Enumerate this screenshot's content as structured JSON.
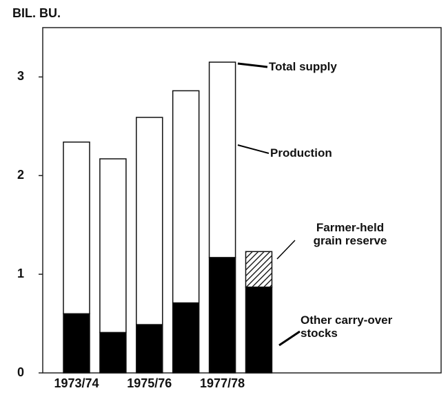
{
  "chart_data": {
    "type": "stacked_bar",
    "y_label": "BIL. BU.",
    "categories": [
      "1973/74",
      null,
      "1975/76",
      null,
      "1977/78",
      null
    ],
    "series": [
      {
        "name": "Other carry-over stocks",
        "color": "#000000",
        "values": [
          0.6,
          0.41,
          0.49,
          0.71,
          1.17,
          0.87
        ]
      },
      {
        "name": "Farmer-held grain reserve",
        "color": "#000000",
        "fill": "hatched",
        "values": [
          null,
          null,
          null,
          null,
          null,
          0.36
        ]
      },
      {
        "name": "Production",
        "color": "#ffffff",
        "values": [
          1.74,
          1.76,
          2.1,
          2.15,
          1.98,
          null
        ]
      }
    ],
    "annotations": [
      "Total supply"
    ],
    "ylim": [
      0,
      3.5
    ],
    "yticks": [
      0,
      1,
      2,
      3
    ]
  }
}
